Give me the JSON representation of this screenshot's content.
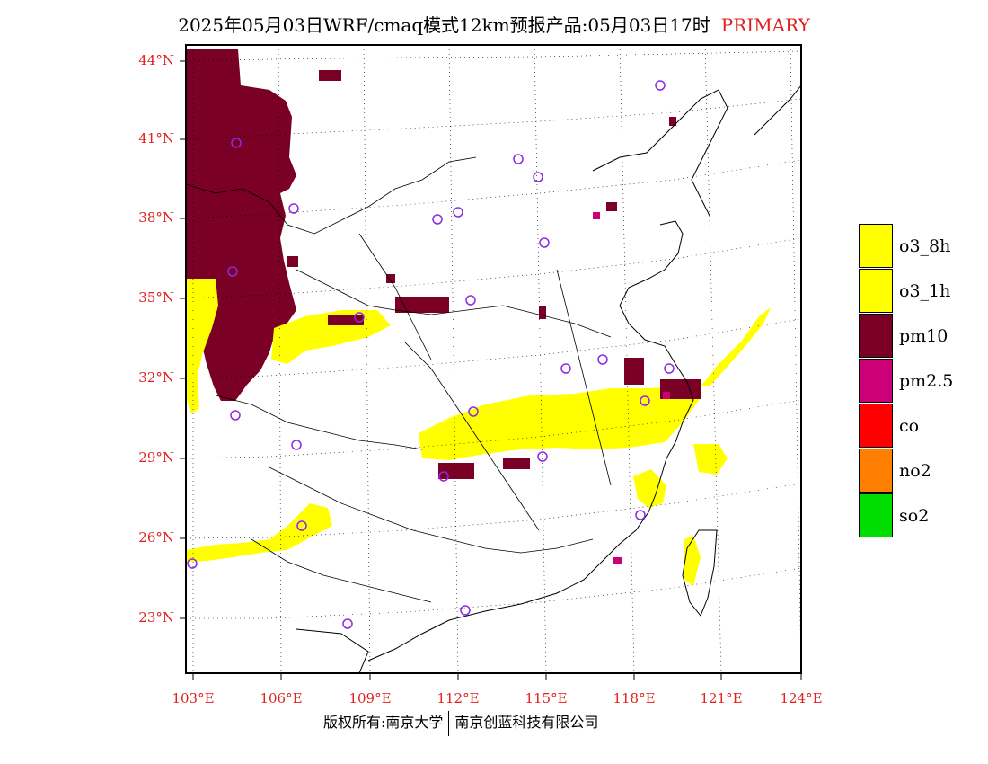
{
  "title": {
    "text": "2025年05月03日WRF/cmaq模式12km预报产品:05月03日17时",
    "tag": "PRIMARY"
  },
  "map": {
    "lat_labels": [
      "44°N",
      "41°N",
      "38°N",
      "35°N",
      "32°N",
      "29°N",
      "26°N",
      "23°N"
    ],
    "lon_labels": [
      "103°E",
      "106°E",
      "109°E",
      "112°E",
      "115°E",
      "118°E",
      "121°E",
      "124°E"
    ]
  },
  "legend": {
    "items": [
      {
        "label": "o3_8h",
        "color": "#ffff00"
      },
      {
        "label": "o3_1h",
        "color": "#ffff00"
      },
      {
        "label": "pm10",
        "color": "#7a0026"
      },
      {
        "label": "pm2.5",
        "color": "#cc0077"
      },
      {
        "label": "co",
        "color": "#ff0000"
      },
      {
        "label": "no2",
        "color": "#ff7f00"
      },
      {
        "label": "so2",
        "color": "#00dd00"
      }
    ]
  },
  "footer": {
    "left": "版权所有:南京大学",
    "right": "南京创蓝科技有限公司"
  },
  "colors": {
    "pm10": "#7a0026",
    "pm25": "#cc0077",
    "o3": "#ffff00",
    "station": "#8a2be2",
    "label": "#e02020"
  }
}
